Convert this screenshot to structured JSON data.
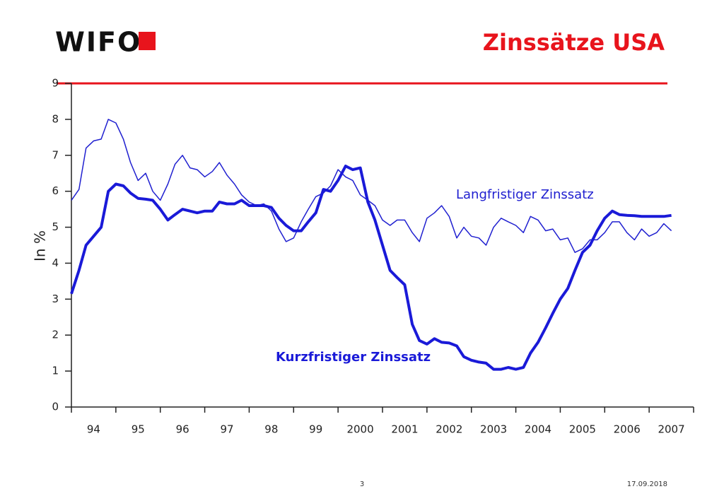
{
  "logo": "WIFO",
  "footer": {
    "page": "3",
    "date": "17.09.2018"
  },
  "chart_data": {
    "type": "line",
    "title": "Zinssätze USA",
    "y_label": "In %",
    "xlim": [
      1994,
      2008
    ],
    "xticks": [
      1994,
      1995,
      1996,
      1997,
      1998,
      1999,
      2000,
      2001,
      2002,
      2003,
      2004,
      2005,
      2006,
      2007,
      2008
    ],
    "categories": [
      "94",
      "95",
      "96",
      "97",
      "98",
      "99",
      "2000",
      "2001",
      "2002",
      "2003",
      "2004",
      "2005",
      "2006",
      "2007"
    ],
    "ylim": [
      0,
      9
    ],
    "yticks": [
      0,
      1,
      2,
      3,
      4,
      5,
      6,
      7,
      8,
      9
    ],
    "grid": false,
    "x": [
      1994,
      1994.17,
      1994.33,
      1994.5,
      1994.67,
      1994.83,
      1995,
      1995.17,
      1995.33,
      1995.5,
      1995.67,
      1995.83,
      1996,
      1996.17,
      1996.33,
      1996.5,
      1996.67,
      1996.83,
      1997,
      1997.17,
      1997.33,
      1997.5,
      1997.67,
      1997.83,
      1998,
      1998.17,
      1998.33,
      1998.5,
      1998.67,
      1998.83,
      1999,
      1999.17,
      1999.33,
      1999.5,
      1999.67,
      1999.83,
      2000,
      2000.17,
      2000.33,
      2000.5,
      2000.67,
      2000.83,
      2001,
      2001.17,
      2001.33,
      2001.5,
      2001.67,
      2001.83,
      2002,
      2002.17,
      2002.33,
      2002.5,
      2002.67,
      2002.83,
      2003,
      2003.17,
      2003.33,
      2003.5,
      2003.67,
      2003.83,
      2004,
      2004.17,
      2004.33,
      2004.5,
      2004.67,
      2004.83,
      2005,
      2005.17,
      2005.33,
      2005.5,
      2005.67,
      2005.83,
      2006,
      2006.17,
      2006.33,
      2006.5,
      2006.67,
      2006.83,
      2007,
      2007.17,
      2007.33,
      2007.5
    ],
    "series": [
      {
        "name": "Langfristiger Zinssatz",
        "color": "#2020d0",
        "width": 1.5,
        "bold": false,
        "values": [
          5.75,
          6.05,
          7.2,
          7.4,
          7.45,
          8.0,
          7.9,
          7.45,
          6.8,
          6.3,
          6.5,
          6.0,
          5.75,
          6.2,
          6.75,
          7.0,
          6.65,
          6.6,
          6.4,
          6.55,
          6.8,
          6.45,
          6.2,
          5.9,
          5.7,
          5.6,
          5.65,
          5.45,
          4.95,
          4.6,
          4.7,
          5.15,
          5.5,
          5.85,
          5.95,
          6.15,
          6.6,
          6.4,
          6.3,
          5.9,
          5.75,
          5.6,
          5.2,
          5.05,
          5.2,
          5.2,
          4.85,
          4.6,
          5.25,
          5.4,
          5.6,
          5.3,
          4.7,
          5.0,
          4.75,
          4.7,
          4.5,
          5.0,
          5.25,
          5.15,
          5.05,
          4.85,
          5.3,
          5.2,
          4.9,
          4.95,
          4.65,
          4.7,
          4.3,
          4.4,
          4.65,
          4.65,
          4.85,
          5.15,
          5.15,
          4.85,
          4.65,
          4.95,
          4.75,
          4.85,
          5.1,
          4.9
        ]
      },
      {
        "name": "Kurzfristiger Zinssatz",
        "color": "#1a1ad8",
        "width": 4,
        "bold": true,
        "values": [
          3.15,
          3.8,
          4.5,
          4.75,
          5.0,
          6.0,
          6.2,
          6.15,
          5.95,
          5.8,
          5.78,
          5.75,
          5.5,
          5.2,
          5.35,
          5.5,
          5.45,
          5.4,
          5.45,
          5.45,
          5.7,
          5.65,
          5.65,
          5.75,
          5.6,
          5.6,
          5.6,
          5.55,
          5.25,
          5.05,
          4.9,
          4.9,
          5.15,
          5.4,
          6.05,
          6.0,
          6.3,
          6.7,
          6.6,
          6.65,
          5.7,
          5.2,
          4.5,
          3.8,
          3.6,
          3.4,
          2.3,
          1.85,
          1.75,
          1.9,
          1.8,
          1.78,
          1.7,
          1.4,
          1.3,
          1.25,
          1.22,
          1.05,
          1.05,
          1.1,
          1.05,
          1.1,
          1.5,
          1.8,
          2.2,
          2.6,
          3.0,
          3.3,
          3.8,
          4.3,
          4.5,
          4.9,
          5.25,
          5.45,
          5.35,
          5.33,
          5.32,
          5.3,
          5.3,
          5.3,
          5.3,
          5.33
        ]
      }
    ]
  }
}
